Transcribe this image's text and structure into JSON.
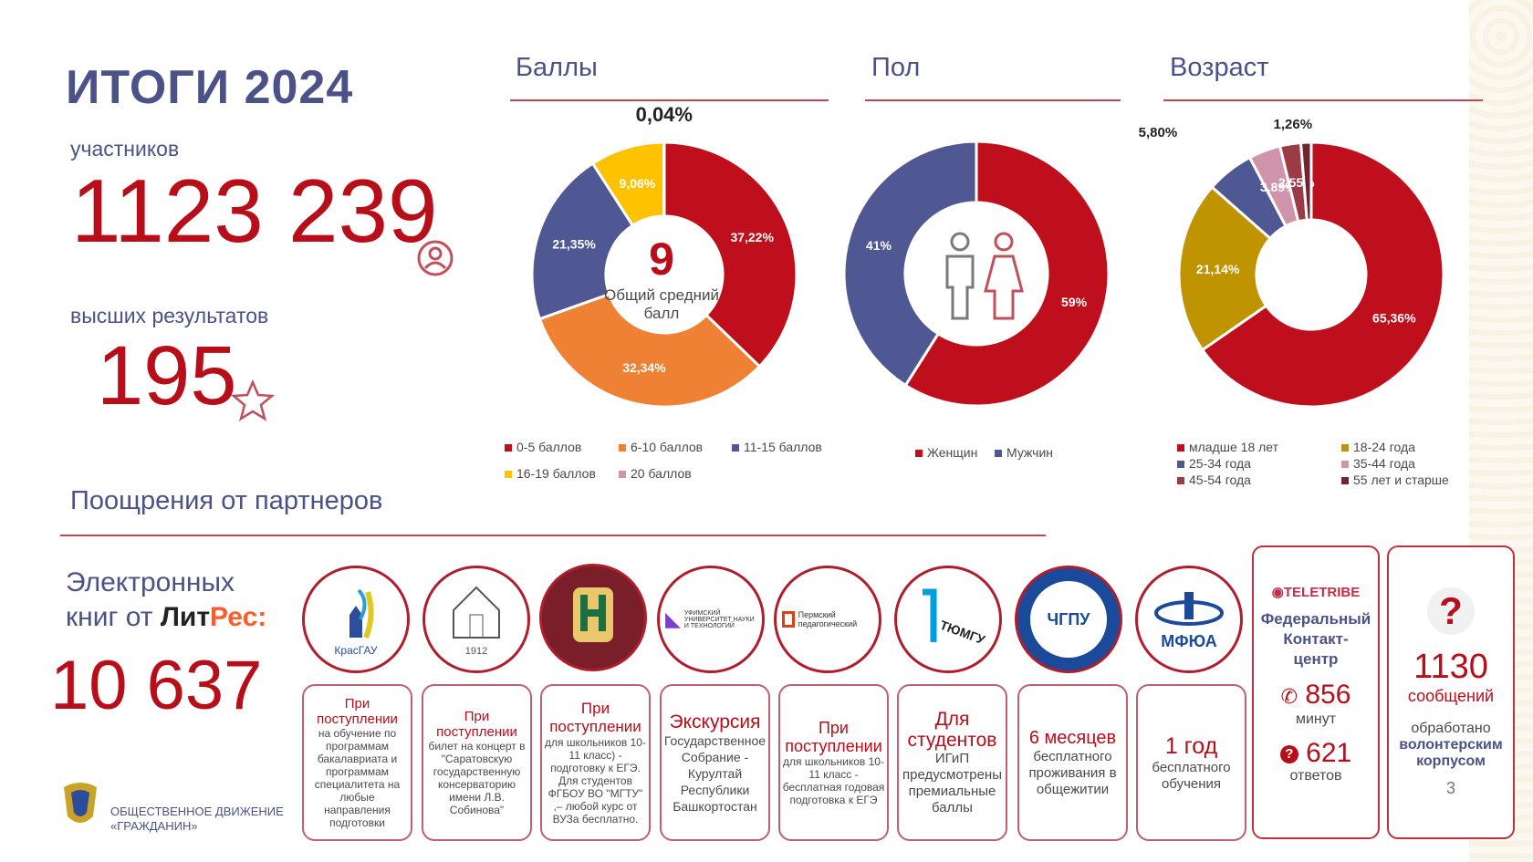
{
  "header": {
    "title": "ИТОГИ 2024",
    "participants_label": "участников",
    "participants_value": "1123 239",
    "top_label": "высших результатов",
    "top_value": "195"
  },
  "sections": {
    "scores": "Баллы",
    "gender": "Пол",
    "age": "Возраст",
    "rewards": "Поощрения от партнеров"
  },
  "chart_data": [
    {
      "type": "pie",
      "title": "Баллы",
      "center_value": "9",
      "center_text_1": "Общий средний",
      "center_text_2": "балл",
      "categories": [
        "0-5 баллов",
        "6-10 баллов",
        "11-15 баллов",
        "16-19 баллов",
        "20 баллов"
      ],
      "values": [
        37.22,
        32.34,
        21.35,
        9.06,
        0.04
      ],
      "labels": [
        "37,22%",
        "32,34%",
        "21,35%",
        "9,06%",
        "0,04%"
      ],
      "colors": [
        "#c00f1c",
        "#ee8134",
        "#4f5892",
        "#fec200",
        "#d094aa"
      ]
    },
    {
      "type": "pie",
      "title": "Пол",
      "categories": [
        "Женщин",
        "Мужчин"
      ],
      "values": [
        59,
        41
      ],
      "labels": [
        "59%",
        "41%"
      ],
      "colors": [
        "#c00f1c",
        "#4f5892"
      ]
    },
    {
      "type": "pie",
      "title": "Возраст",
      "categories": [
        "младше 18 лет",
        "18-24 года",
        "25-34 года",
        "35-44 года",
        "45-54 года",
        "55 лет и старше"
      ],
      "values": [
        65.36,
        21.14,
        5.8,
        3.89,
        2.55,
        1.26
      ],
      "labels": [
        "65,36%",
        "21,14%",
        "5,80%",
        "3,89%",
        "2,55%",
        "1,26%"
      ],
      "colors": [
        "#c00f1c",
        "#bf9400",
        "#4f5892",
        "#d094aa",
        "#9c3a46",
        "#6e2530"
      ]
    }
  ],
  "litres": {
    "line1": "Электронных",
    "line2": "книг от",
    "brand_a": "Лит",
    "brand_b": "Рес:",
    "value": "10 637"
  },
  "logos": [
    "КрасГАУ",
    "1912",
    "",
    "УФИМСКИЙ УНИВЕРСИТЕТ НАУКИ И ТЕХНОЛОГИЙ",
    "Пермский педагогический",
    "ТЮМГУ",
    "ЧГПУ",
    "МФЮА"
  ],
  "cards": [
    {
      "title": "При поступлении",
      "body": "на обучение по программам бакалавриата и программам специалитета на любые направления подготовки"
    },
    {
      "title": "При поступлении",
      "body": "билет на концерт в \"Саратовскую государственную консерваторию имени Л.В. Собинова\""
    },
    {
      "title": "При поступлении",
      "body": "для школьников 10-11 класс) - подготовку к ЕГЭ. Для студентов ФГБОУ ВО \"МГТУ\" ,– любой курс от ВУЗа бесплатно."
    },
    {
      "title": "Экскурсия",
      "body": "Государственное Собрание - Курултай Республики Башкортостан"
    },
    {
      "title": "При поступлении",
      "body": "для школьников 10-11 класс - бесплатная годовая подготовка к ЕГЭ"
    },
    {
      "title": "Для студентов",
      "body": "ИГиП предусмотрены премиальные баллы"
    },
    {
      "title": "6 месяцев",
      "body": "бесплатного проживания в общежитии"
    },
    {
      "title": "1 год",
      "body": "бесплатного обучения"
    }
  ],
  "teletribe": {
    "brand": "TELETRIBE",
    "line1": "Федеральный",
    "line2": "Контакт-",
    "line3": "центр",
    "minutes": "856",
    "minutes_label": "минут",
    "answers": "621",
    "answers_label": "ответов"
  },
  "volunteers": {
    "value": "1130",
    "label": "сообщений",
    "text1": "обработано",
    "text2": "волонтерским",
    "text3": "корпусом"
  },
  "footer": {
    "org1": "ОБЩЕСТВЕННОЕ ДВИЖЕНИЕ",
    "org2": "«ГРАЖДАНИН»",
    "page": "3"
  },
  "colors": {
    "accent": "#b70e1a",
    "navy": "#4b5287"
  }
}
